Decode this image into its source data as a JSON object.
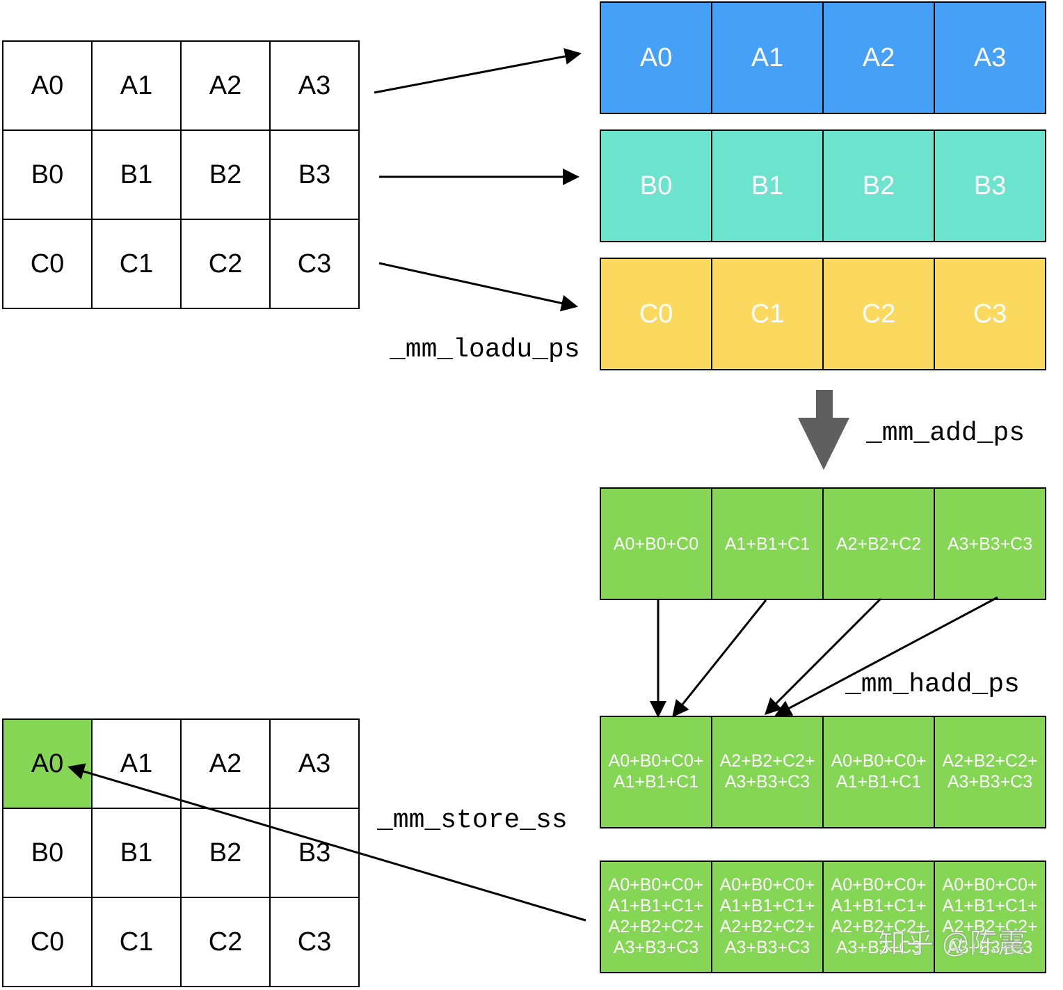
{
  "source_matrix": {
    "rows": [
      [
        "A0",
        "A1",
        "A2",
        "A3"
      ],
      [
        "B0",
        "B1",
        "B2",
        "B3"
      ],
      [
        "C0",
        "C1",
        "C2",
        "C3"
      ]
    ]
  },
  "registers": [
    [
      "A0",
      "A1",
      "A2",
      "A3"
    ],
    [
      "B0",
      "B1",
      "B2",
      "B3"
    ],
    [
      "C0",
      "C1",
      "C2",
      "C3"
    ]
  ],
  "labels": {
    "load": "_mm_loadu_ps",
    "add": "_mm_add_ps",
    "hadd": "_mm_hadd_ps",
    "store": "_mm_store_ss"
  },
  "add_result": [
    "A0+B0+C0",
    "A1+B1+C1",
    "A2+B2+C2",
    "A3+B3+C3"
  ],
  "hadd_result": [
    [
      "A0+B0+C0+",
      "A1+B1+C1"
    ],
    [
      "A2+B2+C2+",
      "A3+B3+C3"
    ],
    [
      "A0+B0+C0+",
      "A1+B1+C1"
    ],
    [
      "A2+B2+C2+",
      "A3+B3+C3"
    ]
  ],
  "final_result": [
    [
      "A0+B0+C0+",
      "A1+B1+C1+",
      "A2+B2+C2+",
      "A3+B3+C3"
    ],
    [
      "A0+B0+C0+",
      "A1+B1+C1+",
      "A2+B2+C2+",
      "A3+B3+C3"
    ],
    [
      "A0+B0+C0+",
      "A1+B1+C1+",
      "A2+B2+C2+",
      "A3+B3+C3"
    ],
    [
      "A0+B0+C0+",
      "A1+B1+C1+",
      "A2+B2+C2+",
      "A3+B3+C3"
    ]
  ],
  "dest_matrix": {
    "rows": [
      [
        "A0",
        "A1",
        "A2",
        "A3"
      ],
      [
        "B0",
        "B1",
        "B2",
        "B3"
      ],
      [
        "C0",
        "C1",
        "C2",
        "C3"
      ]
    ]
  },
  "watermark": "知乎 @陈震"
}
